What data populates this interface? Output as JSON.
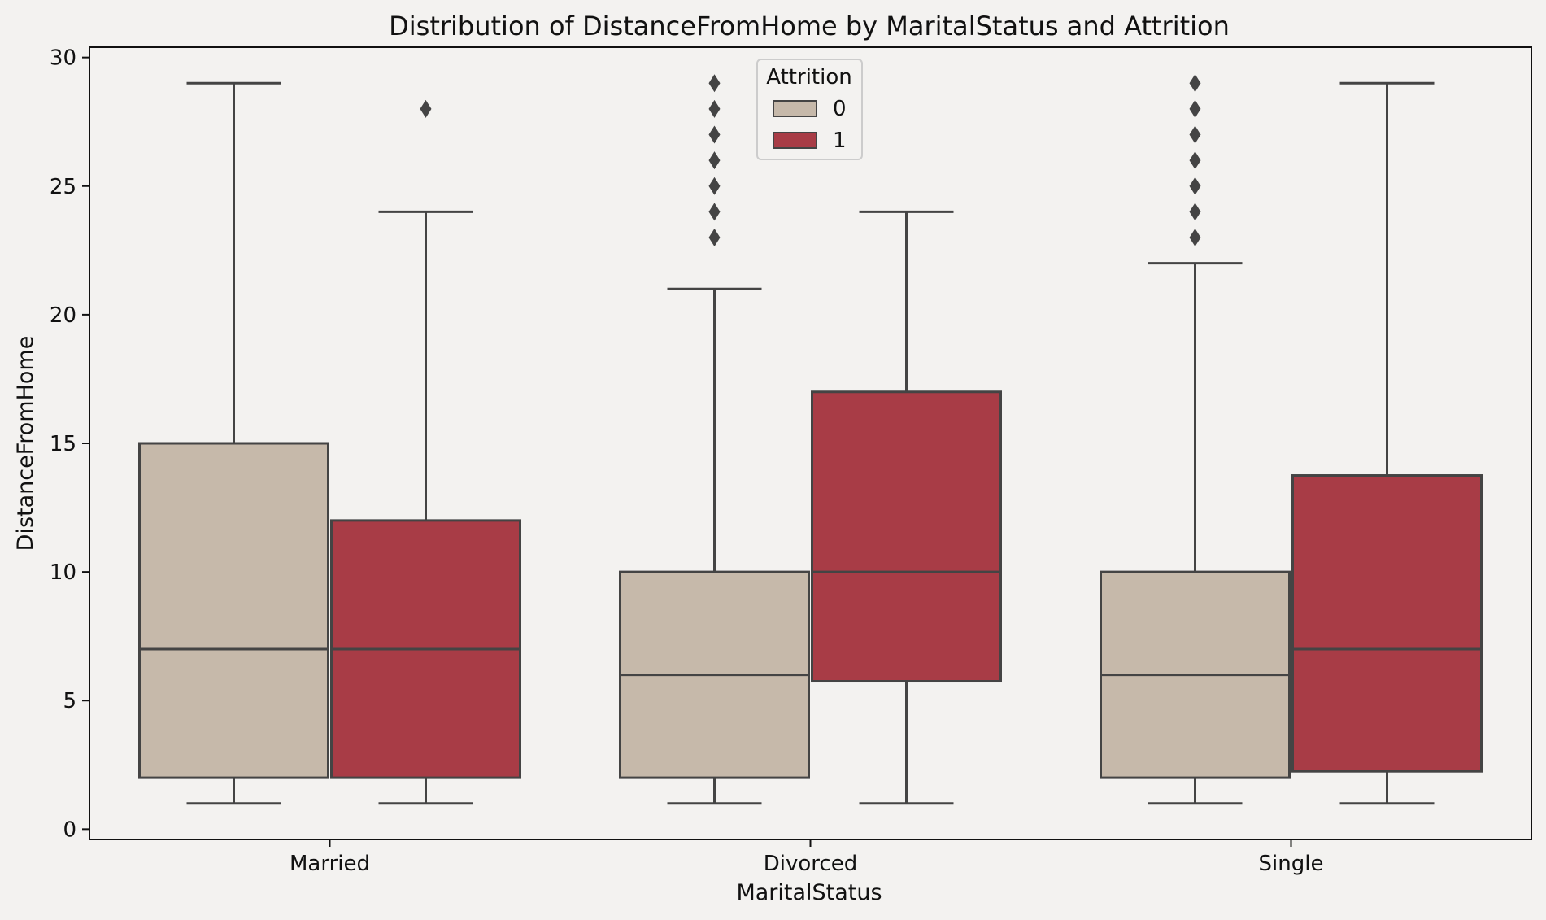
{
  "chart_data": {
    "type": "box",
    "title": "Distribution of DistanceFromHome by MaritalStatus and Attrition",
    "xlabel": "MaritalStatus",
    "ylabel": "DistanceFromHome",
    "categories": [
      "Married",
      "Divorced",
      "Single"
    ],
    "ylim": [
      -0.4,
      30.4
    ],
    "yticks": [
      0,
      5,
      10,
      15,
      20,
      25,
      30
    ],
    "grid": false,
    "legend": {
      "title": "Attrition",
      "placement": "top-center"
    },
    "series": [
      {
        "name": "0",
        "color": "#c6b9aa",
        "boxes": [
          {
            "category": "Married",
            "whisker_low": 1,
            "q1": 2,
            "median": 7,
            "q3": 15,
            "whisker_high": 29,
            "outliers": []
          },
          {
            "category": "Divorced",
            "whisker_low": 1,
            "q1": 2,
            "median": 6,
            "q3": 10,
            "whisker_high": 21,
            "outliers": [
              23,
              24,
              25,
              26,
              27,
              28,
              29
            ]
          },
          {
            "category": "Single",
            "whisker_low": 1,
            "q1": 2,
            "median": 6,
            "q3": 10,
            "whisker_high": 22,
            "outliers": [
              23,
              24,
              25,
              26,
              27,
              28,
              29
            ]
          }
        ]
      },
      {
        "name": "1",
        "color": "#a83c46",
        "boxes": [
          {
            "category": "Married",
            "whisker_low": 1,
            "q1": 2,
            "median": 7,
            "q3": 12,
            "whisker_high": 24,
            "outliers": [
              28
            ]
          },
          {
            "category": "Divorced",
            "whisker_low": 1,
            "q1": 5.75,
            "median": 10,
            "q3": 17,
            "whisker_high": 24,
            "outliers": []
          },
          {
            "category": "Single",
            "whisker_low": 1,
            "q1": 2.25,
            "median": 7,
            "q3": 13.75,
            "whisker_high": 29,
            "outliers": []
          }
        ]
      }
    ],
    "colors": {
      "background": "#f3f2f0",
      "axes_edge": "#111111",
      "box_edge": "#444444"
    }
  }
}
